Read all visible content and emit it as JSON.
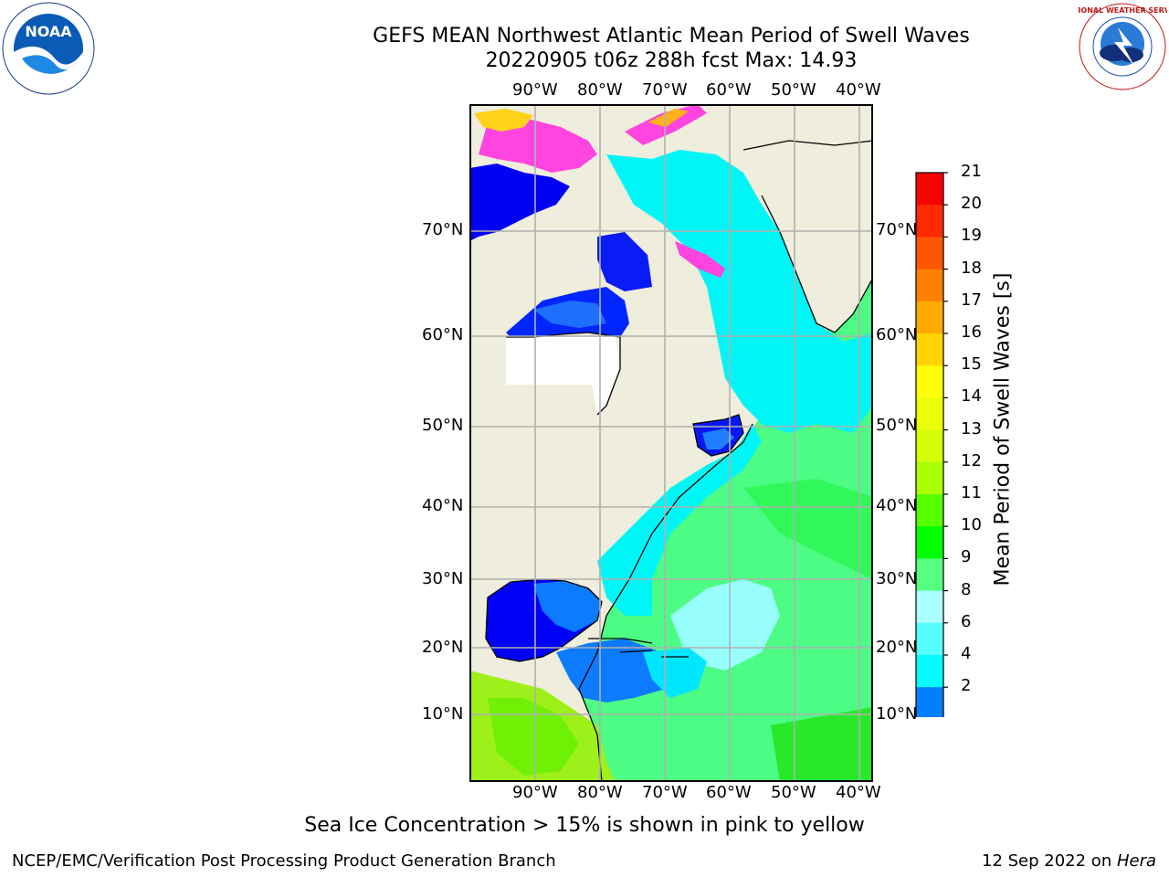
{
  "header": {
    "title": "GEFS MEAN Northwest Atlantic Mean Period of Swell Waves",
    "subtitle": "20220905 t06z 288h fcst   Max: 14.93"
  },
  "logos": {
    "left_text": "NOAA",
    "right_text": "NATIONAL WEATHER SERVICE"
  },
  "map": {
    "lon_labels": [
      "90°W",
      "80°W",
      "70°W",
      "60°W",
      "50°W",
      "40°W"
    ],
    "lat_labels": [
      "70°N",
      "60°N",
      "50°N",
      "40°N",
      "30°N",
      "20°N",
      "10°N"
    ]
  },
  "colorbar": {
    "label": "Mean Period of Swell Waves [s]",
    "ticks": [
      "21",
      "20",
      "19",
      "18",
      "17",
      "16",
      "15",
      "14",
      "13",
      "12",
      "11",
      "10",
      "9",
      "8",
      "6",
      "4",
      "2"
    ],
    "colors": [
      "#ff0000",
      "#ff2a00",
      "#ff5500",
      "#ff7f00",
      "#ffaa00",
      "#ffd400",
      "#ffff00",
      "#eaff00",
      "#d4ff00",
      "#aaff00",
      "#55ff00",
      "#00ff00",
      "#55ff7f",
      "#aaffff",
      "#55ffff",
      "#00ffff",
      "#007fff",
      "#0000ff"
    ]
  },
  "caption": "Sea Ice Concentration > 15% is shown in pink to yellow",
  "footer": {
    "left": "NCEP/EMC/Verification Post Processing Product Generation Branch",
    "right_date": "12 Sep 2022 on ",
    "right_machine": "Hera"
  }
}
